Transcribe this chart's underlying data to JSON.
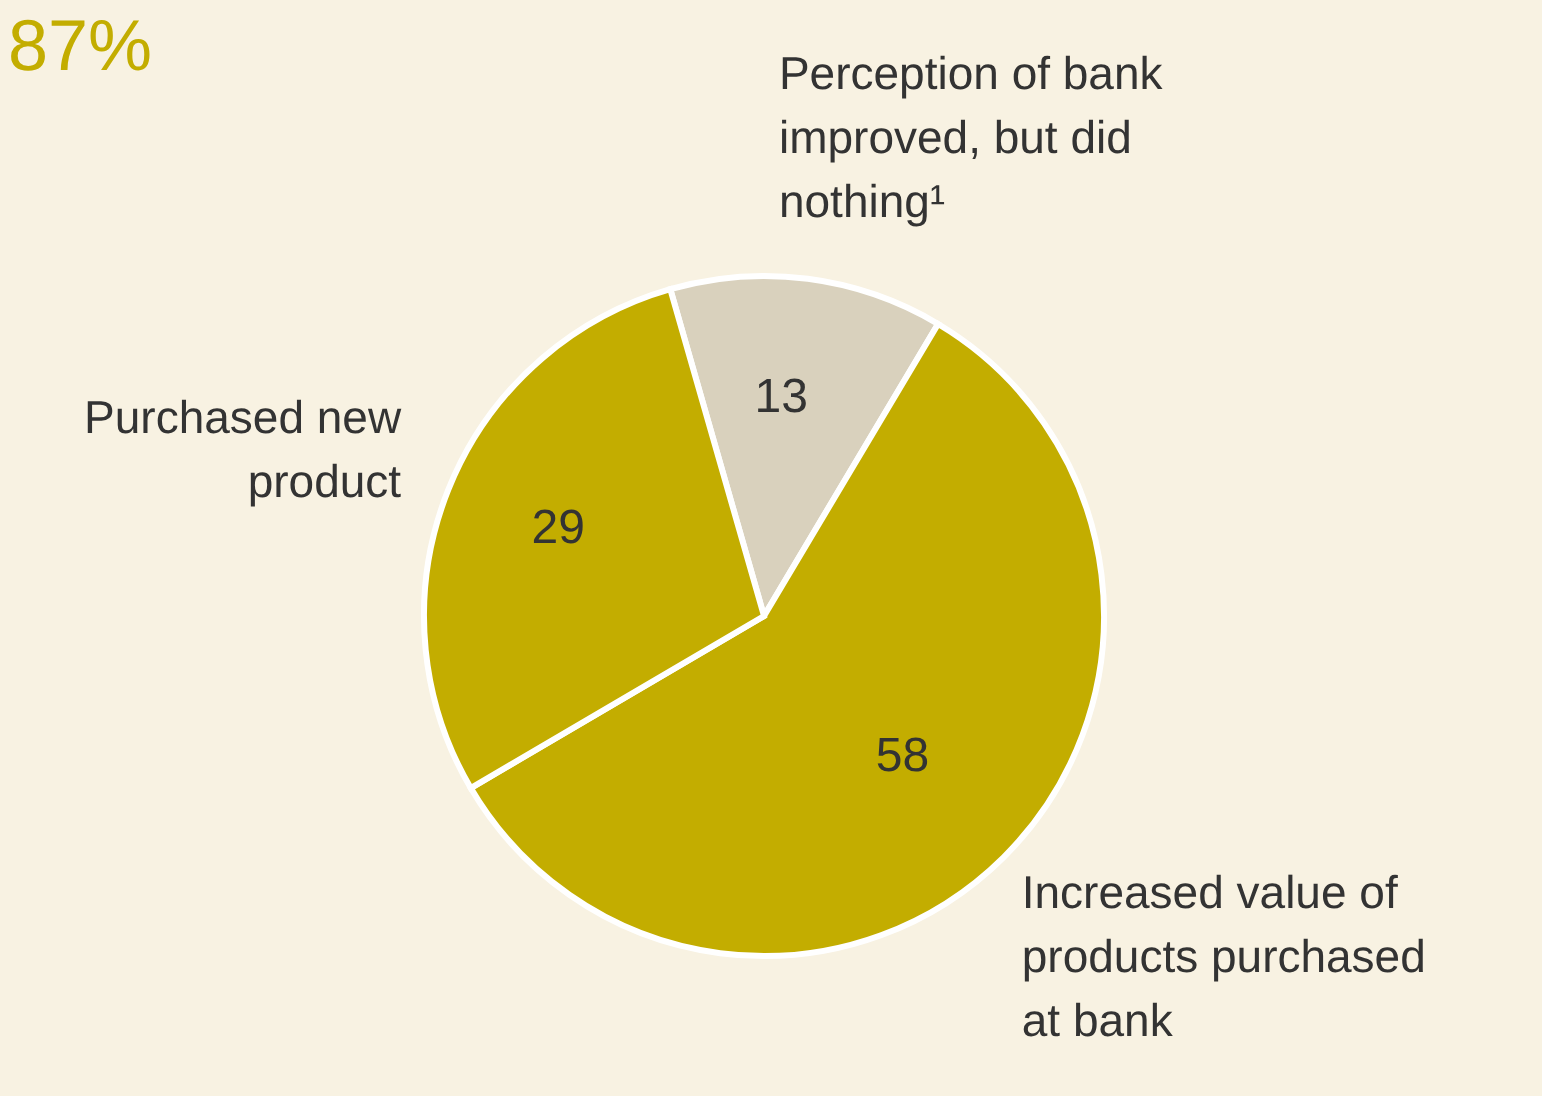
{
  "chart_data": {
    "type": "pie",
    "title": "87%",
    "categories": [
      "Perception of bank improved, but did nothing¹",
      "Increased value of products purchased at bank",
      "Purchased new product"
    ],
    "values": [
      13,
      58,
      29
    ],
    "colors": [
      "#d9d1bd",
      "#c3ad00",
      "#c3ad00"
    ],
    "data_labels": true,
    "legend": false
  }
}
